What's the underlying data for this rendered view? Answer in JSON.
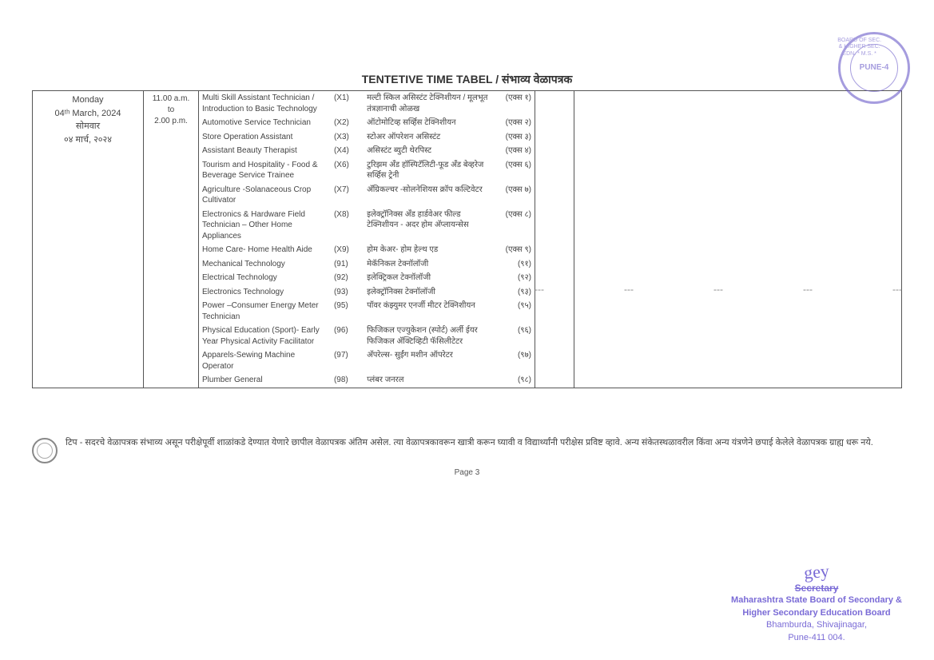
{
  "title": "TENTETIVE TIME TABEL / संभाव्य वेळापत्रक",
  "day": {
    "weekday_en": "Monday",
    "date_en": "04ᵗʰ March, 2024",
    "weekday_mr": "सोमवार",
    "date_mr": "०४ मार्च, २०२४"
  },
  "time": {
    "from": "11.00 a.m.",
    "to_word": "to",
    "to": "2.00 p.m."
  },
  "subjects": [
    {
      "en": "Multi Skill Assistant Technician / Introduction to Basic Technology",
      "c1": "(X1)",
      "mr": "मल्टी स्किल असिस्टंट टेक्निशीयन / मूलभूत तंत्रज्ञानाची ओळख",
      "c2": "(एक्स १)"
    },
    {
      "en": "Automotive Service Technician",
      "c1": "(X2)",
      "mr": "ऑटोमोटिव्ह सर्व्हिस टेक्निशीयन",
      "c2": "(एक्स २)"
    },
    {
      "en": "Store Operation Assistant",
      "c1": "(X3)",
      "mr": "स्टोअर ऑपरेशन असिस्टंट",
      "c2": "(एक्स ३)"
    },
    {
      "en": "Assistant Beauty Therapist",
      "c1": "(X4)",
      "mr": "असिस्टंट ब्युटी थेरपिस्ट",
      "c2": "(एक्स ४)"
    },
    {
      "en": "Tourism and Hospitality - Food & Beverage Service Trainee",
      "c1": "(X6)",
      "mr": "टुरिझम अँड हॉस्पिटॅलिटी-फूड अँड बेव्हरेज सर्व्हिस ट्रेनी",
      "c2": "(एक्स ६)"
    },
    {
      "en": "Agriculture -Solanaceous Crop Cultivator",
      "c1": "(X7)",
      "mr": "अ‍ॅग्रिकल्चर -सोलनेशियस क्रॉप कल्टिवेटर",
      "c2": "(एक्स ७)"
    },
    {
      "en": "Electronics & Hardware Field Technician – Other Home Appliances",
      "c1": "(X8)",
      "mr": "इलेक्ट्रॉनिक्स अँड हार्डवेअर फील्ड टेक्निशीयन - अदर होम अ‍ॅप्लायन्सेस",
      "c2": "(एक्स ८)"
    },
    {
      "en": "Home Care- Home Health Aide",
      "c1": "(X9)",
      "mr": "होम केअर- होम हेल्थ एड",
      "c2": "(एक्स ९)"
    },
    {
      "en": "Mechanical Technology",
      "c1": "(91)",
      "mr": "मेकॅनिकल टेक्नॉलॉजी",
      "c2": "(९१)"
    },
    {
      "en": "Electrical Technology",
      "c1": "(92)",
      "mr": "इलेक्ट्रिकल टेक्नॉलॉजी",
      "c2": "(९२)"
    },
    {
      "en": "Electronics Technology",
      "c1": "(93)",
      "mr": "इलेक्ट्रॉनिक्स टेक्नॉलॉजी",
      "c2": "(९३)"
    },
    {
      "en": "Power –Consumer Energy Meter Technician",
      "c1": "(95)",
      "mr": "पॉवर कंझ्युमर एनर्जी मीटर टेक्निशीयन",
      "c2": "(९५)"
    },
    {
      "en": "Physical Education (Sport)- Early Year Physical Activity Facilitator",
      "c1": "(96)",
      "mr": "फिजिकल एज्युकेशन (स्पोर्ट) अर्ली ईयर फिजिकल ॲक्टिव्हिटी फॅसिलीटेटर",
      "c2": "(९६)"
    },
    {
      "en": "Apparels-Sewing Machine Operator",
      "c1": "(97)",
      "mr": "अ‍ॅपरेल्स- सुईंग मशीन ऑपरेटर",
      "c2": "(९७)"
    },
    {
      "en": "Plumber General",
      "c1": "(98)",
      "mr": "प्लंबर जनरल",
      "c2": "(९८)"
    }
  ],
  "note": "टिप - सदरचे वेळापत्रक संभाव्य असून परीक्षेपूर्वी शाळांकडे देण्यात येणारे छापील वेळापत्रक अंतिम असेल. त्या वेळापत्रकावरून खात्री करून घ्यावी व विद्यार्थ्यांनी परीक्षेस प्रविष्ट व्हावे. अन्य संकेतस्थळावरील किंवा अन्य यंत्रणेने छपाई केलेले वेळापत्रक ग्राह्य धरू नये.",
  "page_num": "Page 3",
  "stamp_top": {
    "outer": "BOARD OF SEC. & HIGHER SEC. EDN. * M.S. *",
    "center": "PUNE-4"
  },
  "signature": {
    "sign": "gey",
    "title": "Secretary",
    "l1": "Maharashtra State Board of Secondary &",
    "l2": "Higher Secondary Education Board",
    "l3": "Bhamburda, Shivajinagar,",
    "l4": "Pune-411 004."
  },
  "colors": {
    "stamp": "#7a6bd6",
    "text": "#444444",
    "border": "#555555"
  }
}
